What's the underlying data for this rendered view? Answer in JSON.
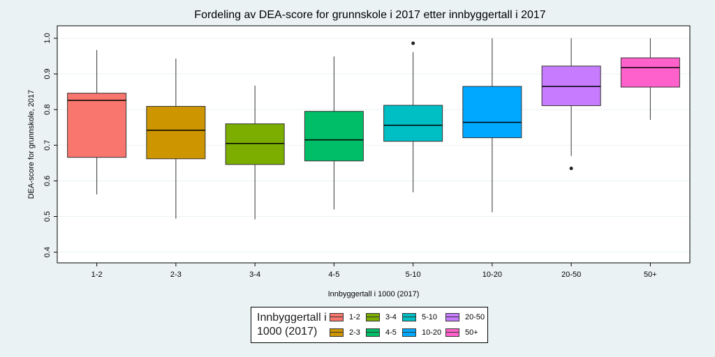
{
  "chart_data": {
    "type": "box",
    "title": "Fordeling av DEA-score for grunnskole i 2017 etter innbyggertall i 2017",
    "x_label": "Innbyggertall i 1000 (2017)",
    "y_label": "DEA-score for grunnskole, 2017",
    "legend_title": "Innbyggertall i 1000 (2017)",
    "categories": [
      "1-2",
      "2-3",
      "3-4",
      "4-5",
      "5-10",
      "10-20",
      "20-50",
      "50+"
    ],
    "colors": [
      "#f8766d",
      "#cd9600",
      "#7cae00",
      "#00be67",
      "#00bfc4",
      "#00a9ff",
      "#c77cff",
      "#ff61cc"
    ],
    "boxes": [
      {
        "min": 0.562,
        "q1": 0.666,
        "median": 0.826,
        "q3": 0.846,
        "max": 0.967,
        "outliers": []
      },
      {
        "min": 0.494,
        "q1": 0.662,
        "median": 0.742,
        "q3": 0.809,
        "max": 0.943,
        "outliers": []
      },
      {
        "min": 0.492,
        "q1": 0.646,
        "median": 0.705,
        "q3": 0.76,
        "max": 0.867,
        "outliers": []
      },
      {
        "min": 0.52,
        "q1": 0.656,
        "median": 0.715,
        "q3": 0.795,
        "max": 0.949,
        "outliers": []
      },
      {
        "min": 0.568,
        "q1": 0.711,
        "median": 0.756,
        "q3": 0.812,
        "max": 0.961,
        "outliers": [
          0.986
        ]
      },
      {
        "min": 0.512,
        "q1": 0.721,
        "median": 0.764,
        "q3": 0.865,
        "max": 1.0,
        "outliers": []
      },
      {
        "min": 0.67,
        "q1": 0.811,
        "median": 0.865,
        "q3": 0.922,
        "max": 1.0,
        "outliers": [
          0.635
        ]
      },
      {
        "min": 0.771,
        "q1": 0.863,
        "median": 0.918,
        "q3": 0.945,
        "max": 1.0,
        "outliers": []
      }
    ],
    "ylim": [
      0.37,
      1.035
    ],
    "yticks": [
      0.4,
      0.5,
      0.6,
      0.7,
      0.8,
      0.9,
      {
        "value": 1,
        "label": "1.0"
      }
    ],
    "grid": true
  }
}
